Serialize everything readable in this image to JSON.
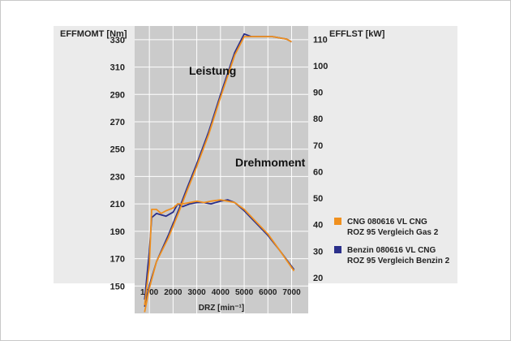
{
  "chart_data": {
    "type": "line",
    "left_axis": {
      "title": "EFFMOMT [Nm]",
      "ticks": [
        150,
        170,
        190,
        210,
        230,
        250,
        270,
        290,
        310,
        330
      ],
      "range": [
        130,
        340
      ]
    },
    "right_axis": {
      "title": "EFFLST [kW]",
      "ticks": [
        20,
        30,
        40,
        50,
        60,
        70,
        80,
        90,
        100,
        110
      ],
      "range": [
        6.5,
        115
      ]
    },
    "x_axis": {
      "title": "DRZ [min⁻¹]",
      "ticks": [
        1000,
        2000,
        3000,
        4000,
        5000,
        6000,
        7000
      ],
      "range": [
        380,
        7700
      ]
    },
    "annotations": {
      "power": "Leistung",
      "torque": "Drehmoment"
    },
    "grid": true,
    "legend_position": "right",
    "series": [
      {
        "name": "CNG  080616 VL CNG",
        "name_line2": "ROZ 95 Vergleich Gas 2",
        "color": "#f0901e",
        "torque_nm": [
          [
            800,
            136
          ],
          [
            1000,
            165
          ],
          [
            1100,
            206
          ],
          [
            1300,
            206
          ],
          [
            1500,
            203
          ],
          [
            1700,
            205
          ],
          [
            2000,
            207
          ],
          [
            2200,
            210
          ],
          [
            2400,
            210
          ],
          [
            2700,
            211
          ],
          [
            3000,
            212
          ],
          [
            3300,
            211
          ],
          [
            3600,
            212
          ],
          [
            4000,
            213
          ],
          [
            4300,
            212
          ],
          [
            4600,
            211
          ],
          [
            5000,
            206
          ],
          [
            5500,
            197
          ],
          [
            6000,
            188
          ],
          [
            6500,
            176
          ],
          [
            7100,
            161
          ]
        ],
        "power_kw": [
          [
            800,
            7
          ],
          [
            1000,
            16
          ],
          [
            1300,
            26
          ],
          [
            1800,
            35
          ],
          [
            2300,
            46
          ],
          [
            2600,
            53
          ],
          [
            3000,
            62
          ],
          [
            3500,
            74
          ],
          [
            4000,
            88
          ],
          [
            4300,
            96
          ],
          [
            4600,
            104
          ],
          [
            5000,
            111
          ],
          [
            5300,
            111
          ],
          [
            5700,
            111
          ],
          [
            6200,
            111
          ],
          [
            6800,
            110
          ],
          [
            7000,
            109
          ]
        ]
      },
      {
        "name": "Benzin 080616 VL CNG",
        "name_line2": "ROZ 95 Vergleich Benzin 2",
        "color": "#2a2f8a",
        "torque_nm": [
          [
            800,
            140
          ],
          [
            1000,
            175
          ],
          [
            1100,
            200
          ],
          [
            1300,
            203
          ],
          [
            1500,
            202
          ],
          [
            1700,
            201
          ],
          [
            2000,
            204
          ],
          [
            2200,
            210
          ],
          [
            2400,
            208
          ],
          [
            2700,
            210
          ],
          [
            3000,
            211
          ],
          [
            3300,
            211
          ],
          [
            3600,
            210
          ],
          [
            4000,
            212
          ],
          [
            4300,
            213
          ],
          [
            4600,
            211
          ],
          [
            5000,
            205
          ],
          [
            5500,
            196
          ],
          [
            6000,
            187
          ],
          [
            6500,
            176
          ],
          [
            7100,
            162
          ]
        ],
        "power_kw": [
          [
            800,
            9
          ],
          [
            1000,
            17
          ],
          [
            1300,
            26
          ],
          [
            1800,
            36
          ],
          [
            2300,
            47
          ],
          [
            2600,
            54
          ],
          [
            3000,
            63
          ],
          [
            3500,
            75
          ],
          [
            4000,
            89
          ],
          [
            4300,
            97
          ],
          [
            4600,
            105
          ],
          [
            5000,
            112
          ],
          [
            5300,
            111
          ],
          [
            5700,
            111
          ],
          [
            6200,
            111
          ],
          [
            6800,
            110
          ],
          [
            7000,
            109
          ]
        ]
      }
    ]
  }
}
